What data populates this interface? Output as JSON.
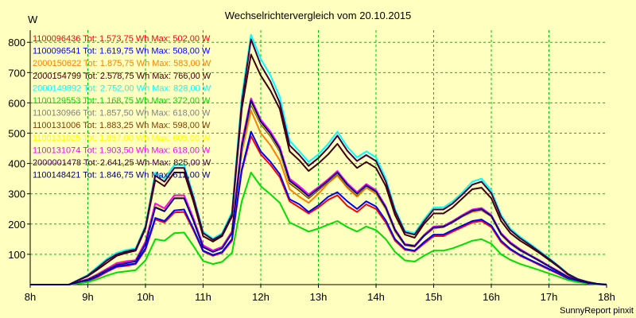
{
  "chart_data": {
    "type": "line",
    "title": "Wechselrichtervergleich vom 20.10.2015",
    "ylabel": "W",
    "xlabel": "",
    "footer": "SunnyReport pinxit",
    "ylim": [
      0,
      840
    ],
    "xlim": [
      8,
      18
    ],
    "yticks": [
      100,
      200,
      300,
      400,
      500,
      600,
      700,
      800
    ],
    "xticks": [
      {
        "value": 8,
        "label": "8h"
      },
      {
        "value": 9,
        "label": "9h"
      },
      {
        "value": 10,
        "label": "10h"
      },
      {
        "value": 11,
        "label": "11h"
      },
      {
        "value": 12,
        "label": "12h"
      },
      {
        "value": 13,
        "label": "13h"
      },
      {
        "value": 14,
        "label": "14h"
      },
      {
        "value": 15,
        "label": "15h"
      },
      {
        "value": 16,
        "label": "16h"
      },
      {
        "value": 17,
        "label": "17h"
      },
      {
        "value": 18,
        "label": "18h"
      }
    ],
    "grid": true,
    "legend_position": "top-left",
    "x": [
      8.0,
      8.33,
      8.67,
      9.0,
      9.17,
      9.33,
      9.5,
      9.67,
      9.83,
      10.0,
      10.17,
      10.33,
      10.5,
      10.67,
      10.83,
      11.0,
      11.17,
      11.33,
      11.5,
      11.67,
      11.83,
      12.0,
      12.17,
      12.33,
      12.5,
      12.67,
      12.83,
      13.0,
      13.17,
      13.33,
      13.5,
      13.67,
      13.83,
      14.0,
      14.17,
      14.33,
      14.5,
      14.67,
      14.83,
      15.0,
      15.17,
      15.33,
      15.5,
      15.67,
      15.83,
      16.0,
      16.17,
      16.33,
      16.5,
      16.67,
      16.83,
      17.0,
      17.17,
      17.33,
      17.5,
      17.67,
      17.83,
      18.0
    ],
    "series": [
      {
        "name": "1100096436",
        "legend": "1100096436 Tot: 1.573,75 Wh Max: 502,00 W",
        "color": "#ff0000",
        "values": [
          0,
          0,
          0,
          12,
          25,
          42,
          58,
          62,
          68,
          115,
          215,
          205,
          238,
          240,
          180,
          110,
          95,
          105,
          145,
          375,
          490,
          430,
          395,
          355,
          275,
          255,
          235,
          255,
          280,
          295,
          260,
          240,
          265,
          250,
          205,
          145,
          115,
          110,
          135,
          160,
          160,
          175,
          190,
          205,
          210,
          190,
          140,
          115,
          95,
          80,
          65,
          50,
          35,
          20,
          10,
          5,
          2,
          0
        ]
      },
      {
        "name": "1100096541",
        "legend": "1100096541 Tot: 1.619,75 Wh Max: 508,00 W",
        "color": "#0000ff",
        "values": [
          0,
          0,
          0,
          14,
          28,
          45,
          60,
          65,
          70,
          120,
          220,
          210,
          245,
          248,
          185,
          112,
          98,
          108,
          150,
          380,
          505,
          440,
          405,
          365,
          282,
          265,
          240,
          262,
          290,
          305,
          275,
          250,
          275,
          258,
          212,
          150,
          118,
          112,
          140,
          165,
          165,
          180,
          195,
          210,
          215,
          195,
          145,
          118,
          98,
          82,
          68,
          52,
          37,
          21,
          11,
          5,
          2,
          0
        ]
      },
      {
        "name": "2000150622",
        "legend": "2000150622 Tot: 1.875,75 Wh Max: 583,00 W",
        "color": "#ff8000",
        "values": [
          0,
          0,
          0,
          18,
          35,
          52,
          72,
          78,
          80,
          140,
          265,
          250,
          285,
          285,
          215,
          125,
          110,
          120,
          170,
          435,
          575,
          500,
          460,
          410,
          315,
          290,
          270,
          300,
          335,
          360,
          320,
          290,
          320,
          300,
          250,
          175,
          130,
          125,
          160,
          185,
          190,
          205,
          225,
          240,
          245,
          225,
          165,
          135,
          112,
          95,
          78,
          60,
          42,
          25,
          13,
          6,
          2,
          0
        ]
      },
      {
        "name": "2000154799",
        "legend": "2000154799 Tot: 2.578,75 Wh Max: 766,00 W",
        "color": "#400000",
        "values": [
          0,
          0,
          0,
          28,
          50,
          72,
          95,
          105,
          112,
          185,
          345,
          325,
          370,
          370,
          275,
          160,
          142,
          160,
          225,
          580,
          760,
          690,
          640,
          580,
          440,
          410,
          375,
          400,
          430,
          465,
          420,
          385,
          405,
          385,
          325,
          230,
          165,
          155,
          200,
          235,
          235,
          255,
          285,
          315,
          320,
          285,
          210,
          170,
          145,
          125,
          105,
          82,
          58,
          33,
          17,
          8,
          3,
          0
        ]
      },
      {
        "name": "2000149892",
        "legend": "2000149892 Tot: 2.752,00 Wh Max: 828,00 W",
        "color": "#00ffff",
        "values": [
          0,
          0,
          0,
          32,
          60,
          85,
          105,
          115,
          120,
          195,
          370,
          350,
          395,
          395,
          295,
          175,
          152,
          170,
          240,
          620,
          825,
          745,
          690,
          620,
          475,
          440,
          405,
          430,
          465,
          505,
          455,
          420,
          440,
          420,
          350,
          250,
          178,
          170,
          215,
          255,
          255,
          275,
          305,
          340,
          350,
          310,
          230,
          185,
          158,
          135,
          112,
          88,
          62,
          36,
          19,
          9,
          3,
          0
        ]
      },
      {
        "name": "1100129553",
        "legend": "1100129553 Tot: 1.168,75 Wh Max: 372,00 W",
        "color": "#00e000",
        "values": [
          0,
          0,
          0,
          8,
          18,
          30,
          40,
          44,
          48,
          80,
          150,
          145,
          170,
          172,
          128,
          78,
          68,
          75,
          105,
          275,
          370,
          325,
          298,
          270,
          205,
          190,
          175,
          185,
          198,
          210,
          190,
          175,
          192,
          180,
          150,
          108,
          80,
          76,
          95,
          112,
          112,
          120,
          132,
          145,
          150,
          135,
          100,
          82,
          68,
          58,
          48,
          37,
          26,
          15,
          8,
          4,
          1,
          0
        ]
      },
      {
        "name": "1100130966",
        "legend": "1100130966 Tot: 1.857,50 Wh Max: 618,00 W",
        "color": "#808080",
        "values": [
          0,
          0,
          0,
          16,
          32,
          48,
          66,
          72,
          78,
          135,
          258,
          245,
          288,
          288,
          215,
          126,
          110,
          122,
          172,
          460,
          612,
          540,
          500,
          450,
          348,
          320,
          295,
          320,
          345,
          372,
          330,
          300,
          328,
          308,
          255,
          180,
          132,
          128,
          162,
          190,
          192,
          208,
          228,
          245,
          250,
          228,
          168,
          138,
          115,
          97,
          80,
          61,
          43,
          25,
          13,
          6,
          2,
          0
        ]
      },
      {
        "name": "1100131006",
        "legend": "1100131006 Tot: 1.883,25 Wh Max: 598,00 W",
        "color": "#804000",
        "values": [
          0,
          0,
          0,
          17,
          33,
          50,
          68,
          74,
          79,
          138,
          262,
          248,
          290,
          290,
          217,
          127,
          111,
          123,
          173,
          458,
          595,
          530,
          490,
          440,
          335,
          310,
          285,
          312,
          340,
          365,
          325,
          295,
          325,
          305,
          252,
          178,
          131,
          126,
          160,
          188,
          190,
          206,
          226,
          243,
          248,
          226,
          166,
          136,
          113,
          96,
          79,
          60,
          42,
          25,
          13,
          6,
          2,
          0
        ]
      },
      {
        "name": "1100131025",
        "legend": "1100131025 Tot: 1.857,00 Wh Max: 605,00 W",
        "color": "#ffff00",
        "values": [
          0,
          0,
          0,
          17,
          33,
          50,
          68,
          74,
          79,
          138,
          262,
          248,
          290,
          290,
          217,
          127,
          111,
          123,
          173,
          460,
          602,
          535,
          495,
          445,
          340,
          315,
          290,
          316,
          342,
          368,
          328,
          298,
          326,
          306,
          253,
          179,
          132,
          127,
          161,
          189,
          191,
          207,
          227,
          244,
          249,
          227,
          167,
          137,
          114,
          96,
          79,
          60,
          42,
          25,
          13,
          6,
          2,
          0
        ]
      },
      {
        "name": "1100131074",
        "legend": "1100131074 Tot: 1.903,50 Wh Max: 618,00 W",
        "color": "#ff00ff",
        "values": [
          0,
          0,
          0,
          18,
          34,
          52,
          70,
          76,
          81,
          142,
          268,
          252,
          295,
          295,
          220,
          130,
          113,
          125,
          176,
          468,
          615,
          545,
          505,
          455,
          350,
          325,
          298,
          322,
          348,
          375,
          335,
          305,
          332,
          312,
          258,
          183,
          134,
          129,
          164,
          192,
          194,
          210,
          230,
          248,
          253,
          230,
          170,
          140,
          117,
          98,
          81,
          62,
          44,
          26,
          14,
          6,
          2,
          0
        ]
      },
      {
        "name": "2000001478",
        "legend": "2000001478 Tot: 2.641,25 Wh Max: 825,00 W",
        "color": "#400040",
        "values": [
          0,
          0,
          0,
          30,
          55,
          80,
          100,
          110,
          116,
          190,
          360,
          340,
          385,
          385,
          288,
          170,
          148,
          165,
          232,
          600,
          810,
          725,
          670,
          600,
          460,
          428,
          392,
          418,
          452,
          492,
          442,
          408,
          428,
          408,
          340,
          243,
          173,
          165,
          208,
          248,
          248,
          268,
          298,
          330,
          340,
          302,
          224,
          180,
          153,
          131,
          109,
          85,
          60,
          35,
          18,
          9,
          3,
          0
        ]
      },
      {
        "name": "1100148421",
        "legend": "1100148421 Tot: 1.846,75 Wh Max: 612,00 W",
        "color": "#000080",
        "values": [
          0,
          0,
          0,
          16,
          31,
          48,
          65,
          71,
          77,
          134,
          255,
          242,
          285,
          285,
          212,
          124,
          108,
          120,
          170,
          455,
          608,
          538,
          498,
          448,
          343,
          318,
          292,
          317,
          343,
          370,
          330,
          300,
          327,
          307,
          254,
          180,
          132,
          127,
          161,
          189,
          191,
          207,
          227,
          244,
          249,
          227,
          167,
          137,
          114,
          96,
          79,
          60,
          42,
          25,
          13,
          6,
          2,
          0
        ]
      }
    ]
  },
  "colors": {
    "background": "#ffffc0",
    "plot_background": "#ffffc0",
    "grid": "#00c000",
    "axis": "#000000"
  }
}
